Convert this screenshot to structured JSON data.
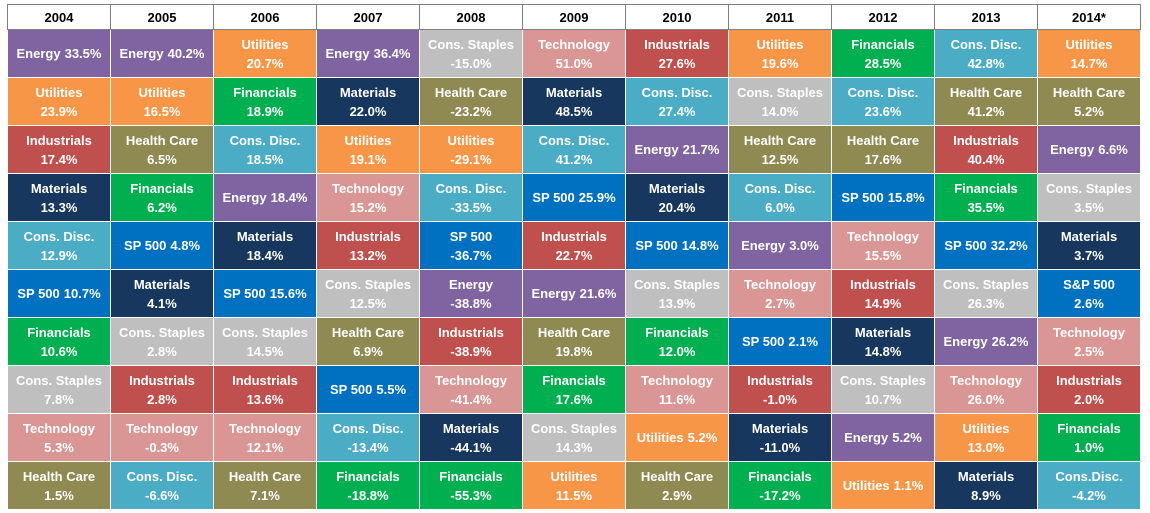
{
  "chart_data": {
    "type": "table",
    "years": [
      "2004",
      "2005",
      "2006",
      "2007",
      "2008",
      "2009",
      "2010",
      "2011",
      "2012",
      "2013",
      "2014*"
    ],
    "sector_colors": {
      "Energy": "#8064a2",
      "Utilities": "#f79646",
      "Industrials": "#c0504d",
      "Materials": "#17375e",
      "Cons. Disc.": "#4bacc6",
      "SP 500": "#0070c0",
      "Financials": "#00b050",
      "Cons. Staples": "#bfbfbf",
      "Technology": "#da9694",
      "Health Care": "#8f8a52"
    },
    "columns": [
      [
        {
          "name": "Energy",
          "value": "33.5%",
          "sector": "Energy",
          "inline": true
        },
        {
          "name": "Utilities",
          "value": "23.9%",
          "sector": "Utilities"
        },
        {
          "name": "Industrials",
          "value": "17.4%",
          "sector": "Industrials"
        },
        {
          "name": "Materials",
          "value": "13.3%",
          "sector": "Materials"
        },
        {
          "name": "Cons. Disc.",
          "value": "12.9%",
          "sector": "Cons. Disc."
        },
        {
          "name": "SP 500",
          "value": "10.7%",
          "sector": "SP 500",
          "inline": true
        },
        {
          "name": "Financials",
          "value": "10.6%",
          "sector": "Financials"
        },
        {
          "name": "Cons. Staples",
          "value": "7.8%",
          "sector": "Cons. Staples"
        },
        {
          "name": "Technology",
          "value": "5.3%",
          "sector": "Technology"
        },
        {
          "name": "Health Care",
          "value": "1.5%",
          "sector": "Health Care"
        }
      ],
      [
        {
          "name": "Energy",
          "value": "40.2%",
          "sector": "Energy",
          "inline": true
        },
        {
          "name": "Utilities",
          "value": "16.5%",
          "sector": "Utilities"
        },
        {
          "name": "Health Care",
          "value": "6.5%",
          "sector": "Health Care"
        },
        {
          "name": "Financials",
          "value": "6.2%",
          "sector": "Financials"
        },
        {
          "name": "SP 500",
          "value": "4.8%",
          "sector": "SP 500",
          "inline": true
        },
        {
          "name": "Materials",
          "value": "4.1%",
          "sector": "Materials"
        },
        {
          "name": "Cons. Staples",
          "value": "2.8%",
          "sector": "Cons. Staples"
        },
        {
          "name": "Industrials",
          "value": "2.8%",
          "sector": "Industrials"
        },
        {
          "name": "Technology",
          "value": "-0.3%",
          "sector": "Technology"
        },
        {
          "name": "Cons. Disc.",
          "value": "-6.6%",
          "sector": "Cons. Disc."
        }
      ],
      [
        {
          "name": "Utilities",
          "value": "20.7%",
          "sector": "Utilities"
        },
        {
          "name": "Financials",
          "value": "18.9%",
          "sector": "Financials"
        },
        {
          "name": "Cons. Disc.",
          "value": "18.5%",
          "sector": "Cons. Disc."
        },
        {
          "name": "Energy",
          "value": "18.4%",
          "sector": "Energy",
          "inline": true
        },
        {
          "name": "Materials",
          "value": "18.4%",
          "sector": "Materials"
        },
        {
          "name": "SP 500",
          "value": "15.6%",
          "sector": "SP 500",
          "inline": true
        },
        {
          "name": "Cons. Staples",
          "value": "14.5%",
          "sector": "Cons. Staples"
        },
        {
          "name": "Industrials",
          "value": "13.6%",
          "sector": "Industrials"
        },
        {
          "name": "Technology",
          "value": "12.1%",
          "sector": "Technology"
        },
        {
          "name": "Health Care",
          "value": "7.1%",
          "sector": "Health Care"
        }
      ],
      [
        {
          "name": "Energy",
          "value": "36.4%",
          "sector": "Energy",
          "inline": true
        },
        {
          "name": "Materials",
          "value": "22.0%",
          "sector": "Materials"
        },
        {
          "name": "Utilities",
          "value": "19.1%",
          "sector": "Utilities"
        },
        {
          "name": "Technology",
          "value": "15.2%",
          "sector": "Technology"
        },
        {
          "name": "Industrials",
          "value": "13.2%",
          "sector": "Industrials"
        },
        {
          "name": "Cons. Staples",
          "value": "12.5%",
          "sector": "Cons. Staples"
        },
        {
          "name": "Health Care",
          "value": "6.9%",
          "sector": "Health Care"
        },
        {
          "name": "SP 500",
          "value": "5.5%",
          "sector": "SP 500",
          "inline": true
        },
        {
          "name": "Cons. Disc.",
          "value": "-13.4%",
          "sector": "Cons. Disc."
        },
        {
          "name": "Financials",
          "value": "-18.8%",
          "sector": "Financials"
        }
      ],
      [
        {
          "name": "Cons. Staples",
          "value": "-15.0%",
          "sector": "Cons. Staples"
        },
        {
          "name": "Health Care",
          "value": "-23.2%",
          "sector": "Health Care"
        },
        {
          "name": "Utilities",
          "value": "-29.1%",
          "sector": "Utilities"
        },
        {
          "name": "Cons. Disc.",
          "value": "-33.5%",
          "sector": "Cons. Disc."
        },
        {
          "name": "SP 500",
          "value": "-36.7%",
          "sector": "SP 500"
        },
        {
          "name": "Energy",
          "value": "-38.8%",
          "sector": "Energy"
        },
        {
          "name": "Industrials",
          "value": "-38.9%",
          "sector": "Industrials"
        },
        {
          "name": "Technology",
          "value": "-41.4%",
          "sector": "Technology"
        },
        {
          "name": "Materials",
          "value": "-44.1%",
          "sector": "Materials"
        },
        {
          "name": "Financials",
          "value": "-55.3%",
          "sector": "Financials"
        }
      ],
      [
        {
          "name": "Technology",
          "value": "51.0%",
          "sector": "Technology"
        },
        {
          "name": "Materials",
          "value": "48.5%",
          "sector": "Materials"
        },
        {
          "name": "Cons. Disc.",
          "value": "41.2%",
          "sector": "Cons. Disc."
        },
        {
          "name": "SP 500",
          "value": "25.9%",
          "sector": "SP 500",
          "inline": true
        },
        {
          "name": "Industrials",
          "value": "22.7%",
          "sector": "Industrials"
        },
        {
          "name": "Energy",
          "value": "21.6%",
          "sector": "Energy",
          "inline": true
        },
        {
          "name": "Health Care",
          "value": "19.8%",
          "sector": "Health Care"
        },
        {
          "name": "Financials",
          "value": "17.6%",
          "sector": "Financials"
        },
        {
          "name": "Cons. Staples",
          "value": "14.3%",
          "sector": "Cons. Staples"
        },
        {
          "name": "Utilities",
          "value": "11.5%",
          "sector": "Utilities"
        }
      ],
      [
        {
          "name": "Industrials",
          "value": "27.6%",
          "sector": "Industrials"
        },
        {
          "name": "Cons. Disc.",
          "value": "27.4%",
          "sector": "Cons. Disc."
        },
        {
          "name": "Energy",
          "value": "21.7%",
          "sector": "Energy",
          "inline": true
        },
        {
          "name": "Materials",
          "value": "20.4%",
          "sector": "Materials"
        },
        {
          "name": "SP 500",
          "value": "14.8%",
          "sector": "SP 500",
          "inline": true
        },
        {
          "name": "Cons. Staples",
          "value": "13.9%",
          "sector": "Cons. Staples"
        },
        {
          "name": "Financials",
          "value": "12.0%",
          "sector": "Financials"
        },
        {
          "name": "Technology",
          "value": "11.6%",
          "sector": "Technology"
        },
        {
          "name": "Utilities",
          "value": "5.2%",
          "sector": "Utilities",
          "inline": true
        },
        {
          "name": "Health Care",
          "value": "2.9%",
          "sector": "Health Care"
        }
      ],
      [
        {
          "name": "Utilities",
          "value": "19.6%",
          "sector": "Utilities"
        },
        {
          "name": "Cons. Staples",
          "value": "14.0%",
          "sector": "Cons. Staples"
        },
        {
          "name": "Health Care",
          "value": "12.5%",
          "sector": "Health Care"
        },
        {
          "name": "Cons. Disc.",
          "value": "6.0%",
          "sector": "Cons. Disc."
        },
        {
          "name": "Energy",
          "value": "3.0%",
          "sector": "Energy",
          "inline": true
        },
        {
          "name": "Technology",
          "value": "2.7%",
          "sector": "Technology"
        },
        {
          "name": "SP 500",
          "value": "2.1%",
          "sector": "SP 500",
          "inline": true
        },
        {
          "name": "Industrials",
          "value": "-1.0%",
          "sector": "Industrials"
        },
        {
          "name": "Materials",
          "value": "-11.0%",
          "sector": "Materials"
        },
        {
          "name": "Financials",
          "value": "-17.2%",
          "sector": "Financials"
        }
      ],
      [
        {
          "name": "Financials",
          "value": "28.5%",
          "sector": "Financials"
        },
        {
          "name": "Cons. Disc.",
          "value": "23.6%",
          "sector": "Cons. Disc."
        },
        {
          "name": "Health Care",
          "value": "17.6%",
          "sector": "Health Care"
        },
        {
          "name": "SP 500",
          "value": "15.8%",
          "sector": "SP 500",
          "inline": true
        },
        {
          "name": "Technology",
          "value": "15.5%",
          "sector": "Technology"
        },
        {
          "name": "Industrials",
          "value": "14.9%",
          "sector": "Industrials"
        },
        {
          "name": "Materials",
          "value": "14.8%",
          "sector": "Materials"
        },
        {
          "name": "Cons. Staples",
          "value": "10.7%",
          "sector": "Cons. Staples"
        },
        {
          "name": "Energy",
          "value": "5.2%",
          "sector": "Energy",
          "inline": true
        },
        {
          "name": "Utilities",
          "value": "1.1%",
          "sector": "Utilities",
          "inline": true
        }
      ],
      [
        {
          "name": "Cons. Disc.",
          "value": "42.8%",
          "sector": "Cons. Disc."
        },
        {
          "name": "Health Care",
          "value": "41.2%",
          "sector": "Health Care"
        },
        {
          "name": "Industrials",
          "value": "40.4%",
          "sector": "Industrials"
        },
        {
          "name": "Financials",
          "value": "35.5%",
          "sector": "Financials"
        },
        {
          "name": "SP 500",
          "value": "32.2%",
          "sector": "SP 500",
          "inline": true
        },
        {
          "name": "Cons. Staples",
          "value": "26.3%",
          "sector": "Cons. Staples"
        },
        {
          "name": "Energy",
          "value": "26.2%",
          "sector": "Energy",
          "inline": true
        },
        {
          "name": "Technology",
          "value": "26.0%",
          "sector": "Technology"
        },
        {
          "name": "Utilities",
          "value": "13.0%",
          "sector": "Utilities"
        },
        {
          "name": "Materials",
          "value": "8.9%",
          "sector": "Materials"
        }
      ],
      [
        {
          "name": "Utilities",
          "value": "14.7%",
          "sector": "Utilities"
        },
        {
          "name": "Health Care",
          "value": "5.2%",
          "sector": "Health Care"
        },
        {
          "name": "Energy",
          "value": "6.6%",
          "sector": "Energy",
          "inline": true
        },
        {
          "name": "Cons. Staples",
          "value": "3.5%",
          "sector": "Cons. Staples"
        },
        {
          "name": "Materials",
          "value": "3.7%",
          "sector": "Materials"
        },
        {
          "name": "S&P 500",
          "value": "2.6%",
          "sector": "SP 500"
        },
        {
          "name": "Technology",
          "value": "2.5%",
          "sector": "Technology"
        },
        {
          "name": "Industrials",
          "value": "2.0%",
          "sector": "Industrials"
        },
        {
          "name": "Financials",
          "value": "1.0%",
          "sector": "Financials"
        },
        {
          "name": "Cons.Disc.",
          "value": "-4.2%",
          "sector": "Cons. Disc."
        }
      ]
    ]
  }
}
